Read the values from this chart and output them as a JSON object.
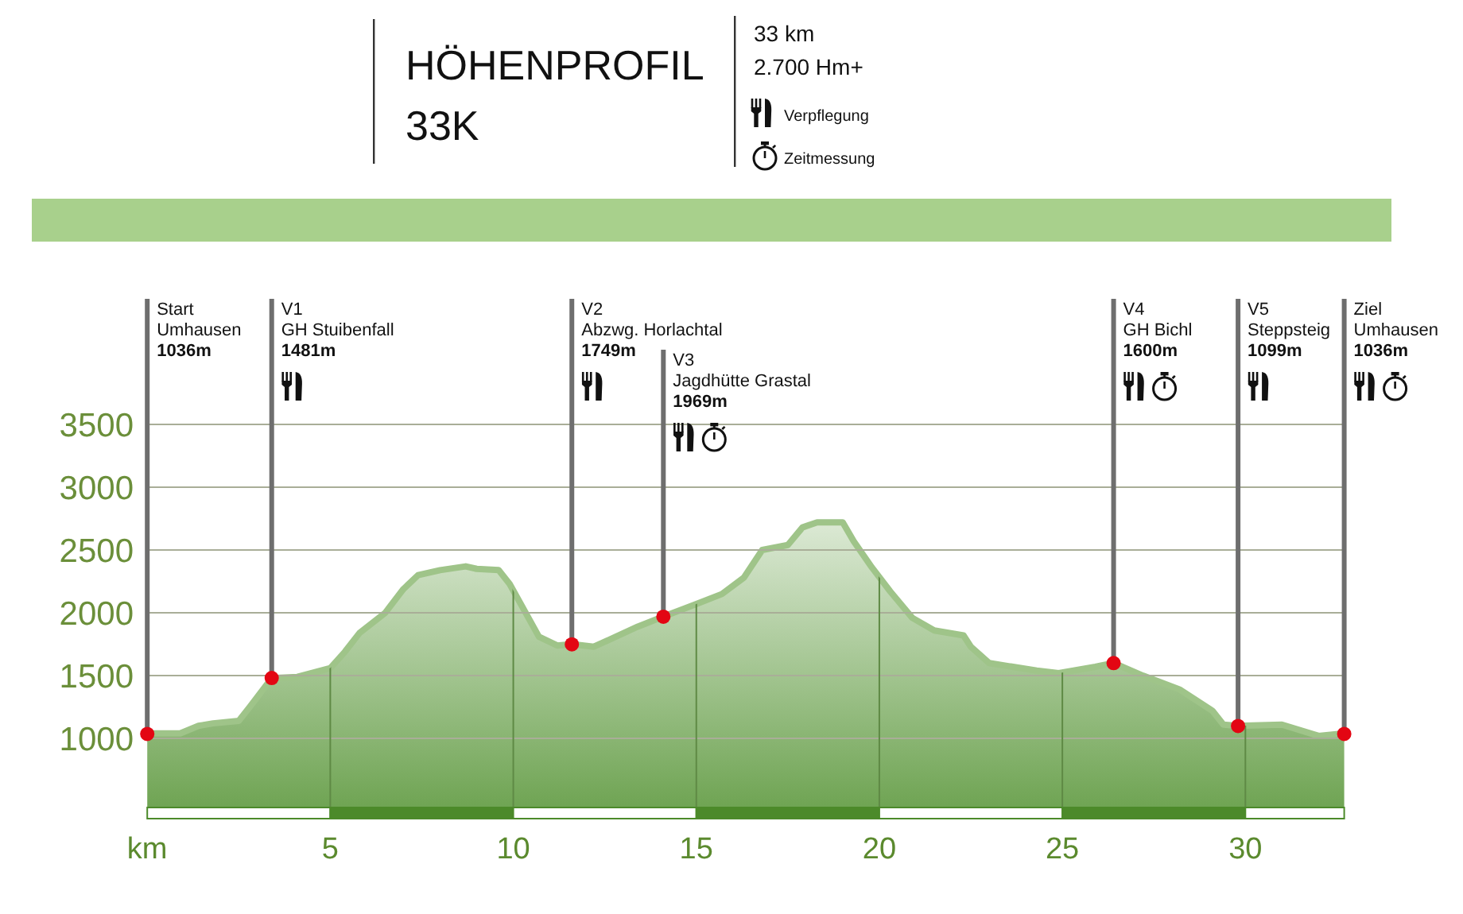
{
  "chart_data": {
    "type": "area",
    "title": "HÖHENPROFIL",
    "subtitle": "33K",
    "xlabel": "km",
    "x": [
      0,
      0.9,
      1.4,
      1.8,
      2.5,
      2.8,
      3.4,
      4.1,
      5.0,
      5.4,
      5.8,
      6.5,
      7.0,
      7.4,
      8.0,
      8.7,
      9.0,
      9.6,
      9.9,
      10.3,
      10.7,
      11.2,
      11.6,
      12.2,
      12.8,
      13.4,
      14.1,
      15.0,
      15.7,
      16.3,
      16.8,
      17.5,
      17.9,
      18.3,
      19.0,
      19.3,
      19.8,
      20.3,
      20.9,
      21.5,
      22.3,
      22.5,
      23.0,
      24.3,
      24.9,
      25.9,
      26.4,
      27.2,
      28.2,
      29.1,
      29.4,
      29.8,
      31.0,
      32.0,
      32.7
    ],
    "series": [
      {
        "color": "#9fc489",
        "values": [
          1040,
          1040,
          1100,
          1120,
          1140,
          1250,
          1480,
          1490,
          1560,
          1690,
          1840,
          2000,
          2190,
          2300,
          2340,
          2370,
          2350,
          2340,
          2230,
          2020,
          1810,
          1740,
          1750,
          1730,
          1810,
          1890,
          1970,
          2070,
          2150,
          2280,
          2500,
          2540,
          2680,
          2720,
          2720,
          2570,
          2360,
          2170,
          1960,
          1860,
          1820,
          1730,
          1600,
          1540,
          1520,
          1570,
          1600,
          1500,
          1390,
          1220,
          1110,
          1100,
          1110,
          1020,
          1040
        ]
      },
      {
        "type": "scatter",
        "color": "#e30613",
        "marker": "circle",
        "x": [
          0,
          3.4,
          11.6,
          14.1,
          26.4,
          29.8,
          32.7
        ],
        "values": [
          1036,
          1481,
          1749,
          1969,
          1600,
          1099,
          1036
        ]
      }
    ],
    "xlim": [
      0,
      32.7
    ],
    "ylim": [
      450,
      4500
    ],
    "xticks": [
      5,
      10,
      15,
      20,
      25,
      30
    ],
    "yticks": [
      1000,
      1500,
      2000,
      2500,
      3000,
      3500
    ],
    "grid": true,
    "annotations": [
      "33 km",
      "2.700 Hm+",
      "Verpflegung",
      "Zeitmessung",
      "Start\nUmhausen\n1036m",
      {
        "text": "V1\nGH Stuibenfall\n1481m",
        "x": 3.4,
        "y": 1481
      },
      {
        "text": "V2\nAbzwg. Horlachtal\n1749m",
        "x": 11.6,
        "y": 1749
      },
      {
        "text": "V3\nJagdhütte Grastal\n1969m",
        "x": 14.1,
        "y": 1969
      },
      {
        "text": "V4\nGH Bichl\n1600m",
        "x": 26.4,
        "y": 1600
      },
      {
        "text": "V5\nSteppsteig\n1099m",
        "x": 29.8,
        "y": 1099
      },
      "Ziel\nUmhausen\n1036m"
    ]
  }
}
